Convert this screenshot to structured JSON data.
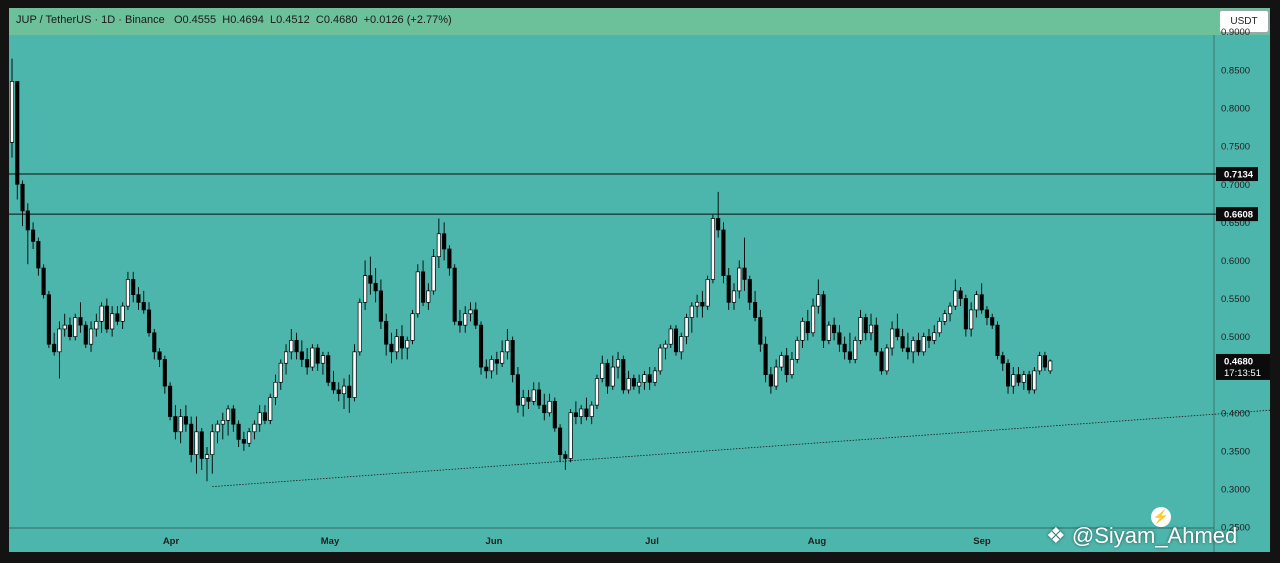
{
  "header": {
    "symbol": "JUP / TetherUS · 1D · Binance",
    "open": "O0.4555",
    "high": "H0.4694",
    "low": "L0.4512",
    "close": "C0.4680",
    "change": "+0.0126 (+2.77%)",
    "currency_button": "USDT"
  },
  "watermark": {
    "logo_icon": "binance-diamond-icon",
    "handle": "@Siyam_Ahmed"
  },
  "colors": {
    "background": "#4db6ac",
    "header_bar": "#6cc19b",
    "up_candle": "#ffffff",
    "down_candle": "#000000",
    "frame": "#131313"
  },
  "chart_data": {
    "type": "candlestick",
    "price_axis_ticks": [
      "0.8500",
      "0.8000",
      "0.7500",
      "0.7000",
      "0.6500",
      "0.6000",
      "0.5500",
      "0.5000",
      "0.4500",
      "0.4000",
      "0.3500",
      "0.3000",
      "0.2500"
    ],
    "time_axis_labels": [
      "Apr",
      "May",
      "Jun",
      "Jul",
      "Aug",
      "Sep"
    ],
    "ylim": [
      0.25,
      0.9
    ],
    "horizontal_levels": [
      {
        "price": 0.7134,
        "label": "0.7134"
      },
      {
        "price": 0.6608,
        "label": "0.6608"
      }
    ],
    "current_price": {
      "price": 0.468,
      "label": "0.4680",
      "countdown": "17:13:51"
    },
    "trendline": {
      "style": "dotted",
      "points": [
        {
          "day": 38,
          "price": 0.303
        },
        {
          "day": 240,
          "price": 0.404
        }
      ]
    },
    "ohlc": [
      [
        0.755,
        0.865,
        0.735,
        0.835
      ],
      [
        0.835,
        0.835,
        0.68,
        0.7
      ],
      [
        0.7,
        0.705,
        0.645,
        0.665
      ],
      [
        0.665,
        0.675,
        0.595,
        0.64
      ],
      [
        0.64,
        0.65,
        0.615,
        0.625
      ],
      [
        0.625,
        0.63,
        0.58,
        0.59
      ],
      [
        0.59,
        0.595,
        0.55,
        0.555
      ],
      [
        0.555,
        0.56,
        0.485,
        0.49
      ],
      [
        0.49,
        0.505,
        0.475,
        0.48
      ],
      [
        0.48,
        0.52,
        0.445,
        0.51
      ],
      [
        0.51,
        0.53,
        0.5,
        0.515
      ],
      [
        0.515,
        0.525,
        0.495,
        0.5
      ],
      [
        0.5,
        0.53,
        0.495,
        0.525
      ],
      [
        0.525,
        0.545,
        0.505,
        0.515
      ],
      [
        0.515,
        0.52,
        0.485,
        0.49
      ],
      [
        0.49,
        0.52,
        0.48,
        0.51
      ],
      [
        0.51,
        0.53,
        0.5,
        0.52
      ],
      [
        0.52,
        0.545,
        0.505,
        0.54
      ],
      [
        0.54,
        0.55,
        0.505,
        0.51
      ],
      [
        0.51,
        0.54,
        0.5,
        0.53
      ],
      [
        0.53,
        0.54,
        0.515,
        0.52
      ],
      [
        0.52,
        0.545,
        0.51,
        0.54
      ],
      [
        0.54,
        0.585,
        0.535,
        0.575
      ],
      [
        0.575,
        0.585,
        0.545,
        0.555
      ],
      [
        0.555,
        0.565,
        0.535,
        0.545
      ],
      [
        0.545,
        0.56,
        0.53,
        0.535
      ],
      [
        0.535,
        0.545,
        0.5,
        0.505
      ],
      [
        0.505,
        0.51,
        0.47,
        0.48
      ],
      [
        0.48,
        0.485,
        0.46,
        0.47
      ],
      [
        0.47,
        0.475,
        0.425,
        0.435
      ],
      [
        0.435,
        0.44,
        0.39,
        0.395
      ],
      [
        0.395,
        0.41,
        0.365,
        0.375
      ],
      [
        0.375,
        0.405,
        0.36,
        0.395
      ],
      [
        0.395,
        0.41,
        0.375,
        0.385
      ],
      [
        0.385,
        0.395,
        0.335,
        0.345
      ],
      [
        0.345,
        0.395,
        0.32,
        0.375
      ],
      [
        0.375,
        0.38,
        0.325,
        0.34
      ],
      [
        0.34,
        0.355,
        0.31,
        0.345
      ],
      [
        0.345,
        0.385,
        0.32,
        0.375
      ],
      [
        0.375,
        0.39,
        0.36,
        0.385
      ],
      [
        0.385,
        0.4,
        0.365,
        0.39
      ],
      [
        0.39,
        0.41,
        0.37,
        0.405
      ],
      [
        0.405,
        0.41,
        0.375,
        0.385
      ],
      [
        0.385,
        0.39,
        0.355,
        0.365
      ],
      [
        0.365,
        0.375,
        0.35,
        0.36
      ],
      [
        0.36,
        0.38,
        0.355,
        0.375
      ],
      [
        0.375,
        0.39,
        0.365,
        0.385
      ],
      [
        0.385,
        0.41,
        0.375,
        0.4
      ],
      [
        0.4,
        0.41,
        0.385,
        0.39
      ],
      [
        0.39,
        0.425,
        0.385,
        0.42
      ],
      [
        0.42,
        0.45,
        0.41,
        0.44
      ],
      [
        0.44,
        0.47,
        0.43,
        0.465
      ],
      [
        0.465,
        0.49,
        0.45,
        0.48
      ],
      [
        0.48,
        0.51,
        0.47,
        0.495
      ],
      [
        0.495,
        0.505,
        0.47,
        0.48
      ],
      [
        0.48,
        0.495,
        0.46,
        0.47
      ],
      [
        0.47,
        0.485,
        0.45,
        0.46
      ],
      [
        0.46,
        0.49,
        0.455,
        0.485
      ],
      [
        0.485,
        0.49,
        0.455,
        0.465
      ],
      [
        0.465,
        0.48,
        0.45,
        0.475
      ],
      [
        0.475,
        0.48,
        0.435,
        0.44
      ],
      [
        0.44,
        0.455,
        0.425,
        0.43
      ],
      [
        0.43,
        0.44,
        0.415,
        0.425
      ],
      [
        0.425,
        0.445,
        0.405,
        0.435
      ],
      [
        0.435,
        0.45,
        0.4,
        0.42
      ],
      [
        0.42,
        0.49,
        0.415,
        0.48
      ],
      [
        0.48,
        0.55,
        0.475,
        0.545
      ],
      [
        0.545,
        0.6,
        0.535,
        0.58
      ],
      [
        0.58,
        0.605,
        0.555,
        0.57
      ],
      [
        0.57,
        0.59,
        0.545,
        0.56
      ],
      [
        0.56,
        0.575,
        0.51,
        0.52
      ],
      [
        0.52,
        0.53,
        0.475,
        0.49
      ],
      [
        0.49,
        0.505,
        0.465,
        0.48
      ],
      [
        0.48,
        0.51,
        0.47,
        0.5
      ],
      [
        0.5,
        0.515,
        0.47,
        0.485
      ],
      [
        0.485,
        0.5,
        0.47,
        0.495
      ],
      [
        0.495,
        0.535,
        0.49,
        0.53
      ],
      [
        0.53,
        0.595,
        0.525,
        0.585
      ],
      [
        0.585,
        0.6,
        0.54,
        0.545
      ],
      [
        0.545,
        0.57,
        0.535,
        0.56
      ],
      [
        0.56,
        0.615,
        0.555,
        0.605
      ],
      [
        0.605,
        0.655,
        0.59,
        0.635
      ],
      [
        0.635,
        0.65,
        0.6,
        0.615
      ],
      [
        0.615,
        0.62,
        0.58,
        0.59
      ],
      [
        0.59,
        0.595,
        0.515,
        0.52
      ],
      [
        0.52,
        0.535,
        0.505,
        0.515
      ],
      [
        0.515,
        0.54,
        0.505,
        0.53
      ],
      [
        0.53,
        0.545,
        0.52,
        0.535
      ],
      [
        0.535,
        0.545,
        0.51,
        0.515
      ],
      [
        0.515,
        0.52,
        0.45,
        0.46
      ],
      [
        0.46,
        0.47,
        0.445,
        0.455
      ],
      [
        0.455,
        0.475,
        0.445,
        0.47
      ],
      [
        0.47,
        0.48,
        0.45,
        0.465
      ],
      [
        0.465,
        0.495,
        0.46,
        0.48
      ],
      [
        0.48,
        0.51,
        0.47,
        0.495
      ],
      [
        0.495,
        0.5,
        0.44,
        0.45
      ],
      [
        0.45,
        0.46,
        0.4,
        0.41
      ],
      [
        0.41,
        0.43,
        0.395,
        0.42
      ],
      [
        0.42,
        0.43,
        0.405,
        0.415
      ],
      [
        0.415,
        0.44,
        0.41,
        0.43
      ],
      [
        0.43,
        0.44,
        0.405,
        0.41
      ],
      [
        0.41,
        0.425,
        0.39,
        0.4
      ],
      [
        0.4,
        0.425,
        0.395,
        0.415
      ],
      [
        0.415,
        0.42,
        0.375,
        0.38
      ],
      [
        0.38,
        0.385,
        0.335,
        0.345
      ],
      [
        0.345,
        0.35,
        0.325,
        0.34
      ],
      [
        0.34,
        0.405,
        0.335,
        0.4
      ],
      [
        0.4,
        0.415,
        0.385,
        0.395
      ],
      [
        0.395,
        0.41,
        0.385,
        0.405
      ],
      [
        0.405,
        0.42,
        0.39,
        0.395
      ],
      [
        0.395,
        0.415,
        0.385,
        0.41
      ],
      [
        0.41,
        0.45,
        0.405,
        0.445
      ],
      [
        0.445,
        0.475,
        0.44,
        0.465
      ],
      [
        0.465,
        0.47,
        0.425,
        0.435
      ],
      [
        0.435,
        0.475,
        0.43,
        0.46
      ],
      [
        0.46,
        0.48,
        0.445,
        0.47
      ],
      [
        0.47,
        0.475,
        0.425,
        0.43
      ],
      [
        0.43,
        0.455,
        0.425,
        0.445
      ],
      [
        0.445,
        0.45,
        0.43,
        0.435
      ],
      [
        0.435,
        0.45,
        0.425,
        0.44
      ],
      [
        0.44,
        0.455,
        0.43,
        0.45
      ],
      [
        0.45,
        0.46,
        0.43,
        0.44
      ],
      [
        0.44,
        0.46,
        0.435,
        0.455
      ],
      [
        0.455,
        0.49,
        0.45,
        0.485
      ],
      [
        0.485,
        0.495,
        0.47,
        0.49
      ],
      [
        0.49,
        0.515,
        0.485,
        0.51
      ],
      [
        0.51,
        0.515,
        0.475,
        0.48
      ],
      [
        0.48,
        0.505,
        0.47,
        0.5
      ],
      [
        0.5,
        0.53,
        0.49,
        0.525
      ],
      [
        0.525,
        0.545,
        0.505,
        0.54
      ],
      [
        0.54,
        0.555,
        0.525,
        0.545
      ],
      [
        0.545,
        0.56,
        0.525,
        0.54
      ],
      [
        0.54,
        0.58,
        0.535,
        0.575
      ],
      [
        0.575,
        0.66,
        0.57,
        0.655
      ],
      [
        0.655,
        0.69,
        0.63,
        0.64
      ],
      [
        0.64,
        0.65,
        0.57,
        0.58
      ],
      [
        0.58,
        0.59,
        0.535,
        0.545
      ],
      [
        0.545,
        0.57,
        0.535,
        0.56
      ],
      [
        0.56,
        0.6,
        0.55,
        0.59
      ],
      [
        0.59,
        0.63,
        0.56,
        0.575
      ],
      [
        0.575,
        0.58,
        0.535,
        0.545
      ],
      [
        0.545,
        0.56,
        0.52,
        0.525
      ],
      [
        0.525,
        0.535,
        0.48,
        0.49
      ],
      [
        0.49,
        0.5,
        0.44,
        0.45
      ],
      [
        0.45,
        0.46,
        0.425,
        0.435
      ],
      [
        0.435,
        0.47,
        0.43,
        0.46
      ],
      [
        0.46,
        0.48,
        0.455,
        0.475
      ],
      [
        0.475,
        0.485,
        0.44,
        0.45
      ],
      [
        0.45,
        0.48,
        0.445,
        0.47
      ],
      [
        0.47,
        0.5,
        0.465,
        0.495
      ],
      [
        0.495,
        0.525,
        0.485,
        0.52
      ],
      [
        0.52,
        0.535,
        0.495,
        0.505
      ],
      [
        0.505,
        0.55,
        0.5,
        0.54
      ],
      [
        0.54,
        0.575,
        0.53,
        0.555
      ],
      [
        0.555,
        0.56,
        0.485,
        0.495
      ],
      [
        0.495,
        0.52,
        0.49,
        0.515
      ],
      [
        0.515,
        0.525,
        0.495,
        0.505
      ],
      [
        0.505,
        0.515,
        0.48,
        0.49
      ],
      [
        0.49,
        0.5,
        0.47,
        0.48
      ],
      [
        0.48,
        0.505,
        0.465,
        0.47
      ],
      [
        0.47,
        0.5,
        0.465,
        0.495
      ],
      [
        0.495,
        0.535,
        0.49,
        0.525
      ],
      [
        0.525,
        0.53,
        0.495,
        0.505
      ],
      [
        0.505,
        0.53,
        0.495,
        0.515
      ],
      [
        0.515,
        0.525,
        0.475,
        0.48
      ],
      [
        0.48,
        0.485,
        0.45,
        0.455
      ],
      [
        0.455,
        0.49,
        0.45,
        0.485
      ],
      [
        0.485,
        0.52,
        0.475,
        0.51
      ],
      [
        0.51,
        0.53,
        0.495,
        0.5
      ],
      [
        0.5,
        0.51,
        0.48,
        0.485
      ],
      [
        0.485,
        0.505,
        0.47,
        0.48
      ],
      [
        0.48,
        0.5,
        0.465,
        0.495
      ],
      [
        0.495,
        0.505,
        0.475,
        0.48
      ],
      [
        0.48,
        0.505,
        0.475,
        0.5
      ],
      [
        0.5,
        0.51,
        0.485,
        0.495
      ],
      [
        0.495,
        0.515,
        0.49,
        0.505
      ],
      [
        0.505,
        0.525,
        0.5,
        0.52
      ],
      [
        0.52,
        0.535,
        0.515,
        0.53
      ],
      [
        0.53,
        0.545,
        0.52,
        0.54
      ],
      [
        0.54,
        0.575,
        0.535,
        0.56
      ],
      [
        0.56,
        0.565,
        0.54,
        0.55
      ],
      [
        0.55,
        0.555,
        0.5,
        0.51
      ],
      [
        0.51,
        0.545,
        0.5,
        0.535
      ],
      [
        0.535,
        0.56,
        0.525,
        0.555
      ],
      [
        0.555,
        0.57,
        0.53,
        0.535
      ],
      [
        0.535,
        0.54,
        0.515,
        0.525
      ],
      [
        0.525,
        0.53,
        0.51,
        0.515
      ],
      [
        0.515,
        0.52,
        0.47,
        0.475
      ],
      [
        0.475,
        0.48,
        0.455,
        0.465
      ],
      [
        0.465,
        0.47,
        0.425,
        0.435
      ],
      [
        0.435,
        0.46,
        0.425,
        0.45
      ],
      [
        0.45,
        0.46,
        0.435,
        0.44
      ],
      [
        0.44,
        0.455,
        0.43,
        0.45
      ],
      [
        0.45,
        0.455,
        0.425,
        0.43
      ],
      [
        0.43,
        0.46,
        0.425,
        0.455
      ],
      [
        0.455,
        0.48,
        0.45,
        0.475
      ],
      [
        0.475,
        0.48,
        0.455,
        0.46
      ],
      [
        0.455,
        0.47,
        0.451,
        0.468
      ]
    ]
  }
}
